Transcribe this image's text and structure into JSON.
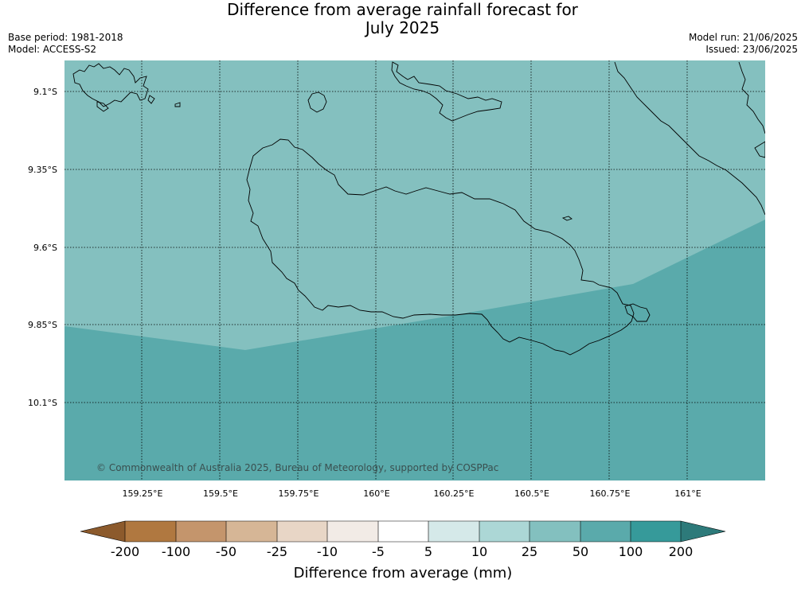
{
  "title_line1": "Difference from average rainfall forecast for",
  "title_line2": "July 2025",
  "base_period": "Base period: 1981-2018",
  "model": "Model: ACCESS-S2",
  "model_run": "Model run: 21/06/2025",
  "issued": "Issued: 23/06/2025",
  "lat_labels": [
    "9.1°S",
    "9.35°S",
    "9.6°S",
    "9.85°S",
    "10.1°S"
  ],
  "lon_labels": [
    "159.25°E",
    "159.5°E",
    "159.75°E",
    "160°E",
    "160.25°E",
    "160.5°E",
    "160.75°E",
    "161°E"
  ],
  "copyright": "© Commonwealth of Australia 2025, Bureau of Meteorology, supported by COSPPac",
  "colorbar": {
    "labels": [
      "-200",
      "-100",
      "-50",
      "-25",
      "-10",
      "-5",
      "5",
      "10",
      "25",
      "50",
      "100",
      "200"
    ],
    "title": "Difference from average (mm)",
    "colors": [
      "#8c5a2c",
      "#b07840",
      "#c4956c",
      "#d6b696",
      "#e8d6c6",
      "#f2ebe6",
      "#ffffff",
      "#d5e9e9",
      "#acd7d6",
      "#83c0bf",
      "#5aaaab",
      "#369a9a",
      "#2d7a7a"
    ]
  },
  "regions": {
    "upper_color": "#84c0bf",
    "lower_color": "#5aaaab"
  }
}
